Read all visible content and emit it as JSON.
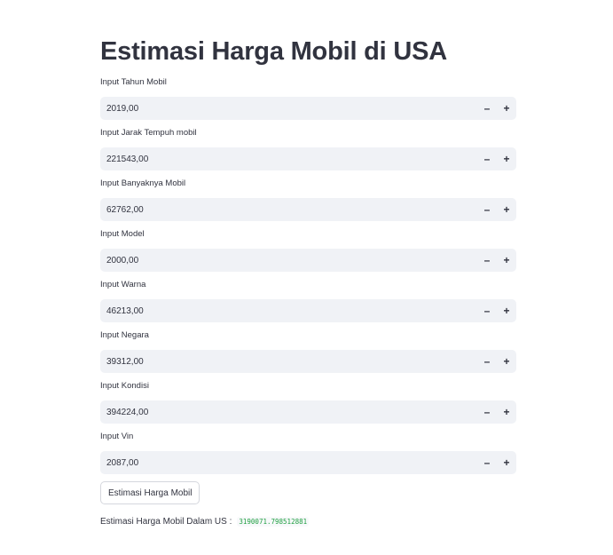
{
  "page": {
    "title": "Estimasi Harga Mobil di USA"
  },
  "fields": [
    {
      "label": "Input Tahun Mobil",
      "value": "2019,00"
    },
    {
      "label": "Input Jarak Tempuh mobil",
      "value": "221543,00"
    },
    {
      "label": "Input Banyaknya Mobil",
      "value": "62762,00"
    },
    {
      "label": "Input Model",
      "value": "2000,00"
    },
    {
      "label": "Input Warna",
      "value": "46213,00"
    },
    {
      "label": "Input Negara",
      "value": "39312,00"
    },
    {
      "label": "Input Kondisi",
      "value": "394224,00"
    },
    {
      "label": "Input Vin",
      "value": "2087,00"
    }
  ],
  "stepper": {
    "minus": "–",
    "plus": "+"
  },
  "button": {
    "label": "Estimasi Harga Mobil"
  },
  "result": {
    "label": "Estimasi Harga Mobil Dalam US :",
    "value": "3190071.798512881"
  },
  "colors": {
    "background": "#ffffff",
    "input_bg": "#f0f2f6",
    "text": "#31333f",
    "result_value": "#21a043"
  }
}
